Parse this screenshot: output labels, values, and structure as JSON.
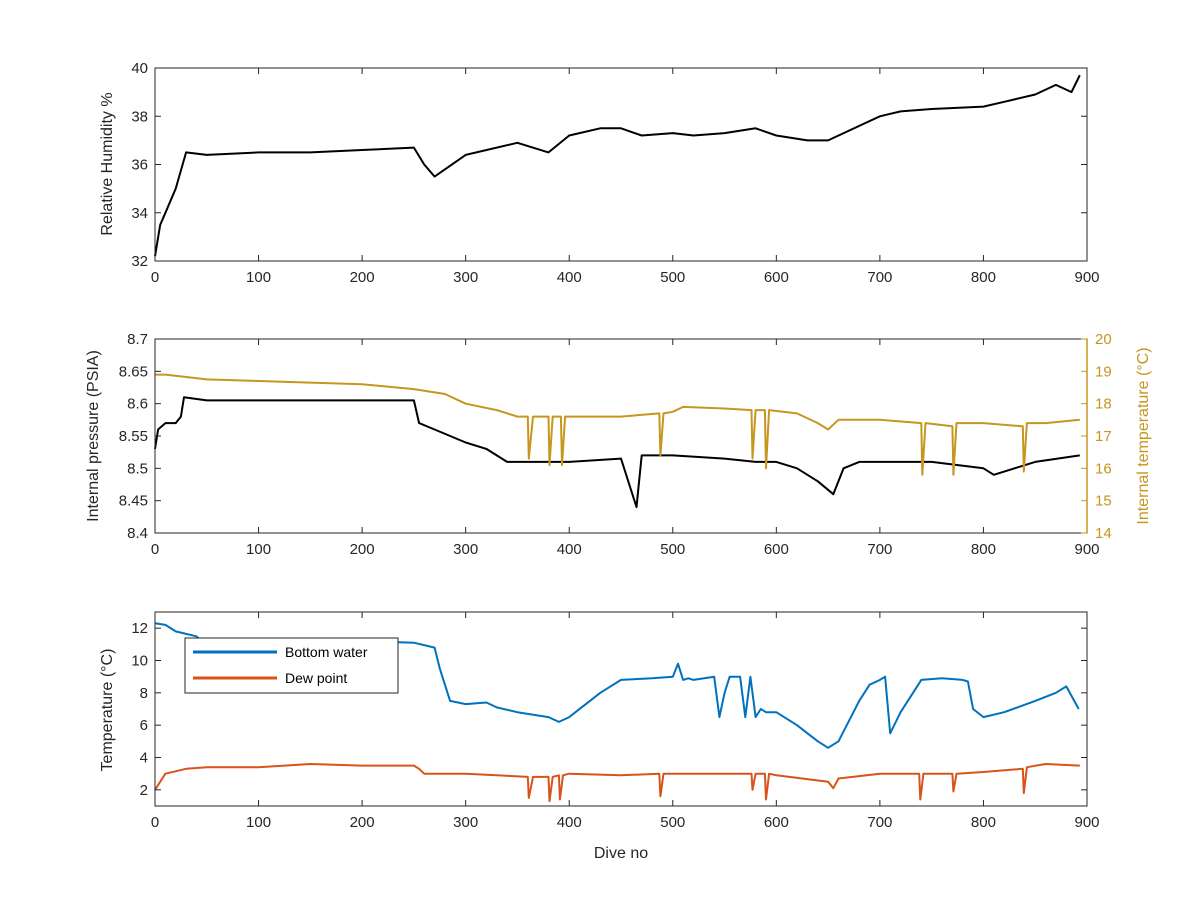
{
  "chart_data": [
    {
      "type": "line",
      "xlim": [
        0,
        900
      ],
      "ylim": [
        32,
        40
      ],
      "xticks": [
        "0",
        "100",
        "200",
        "300",
        "400",
        "500",
        "600",
        "700",
        "800",
        "900"
      ],
      "yticks": [
        "32",
        "34",
        "36",
        "38",
        "40"
      ],
      "ylabel": "Relative Humidity %",
      "grid": false,
      "series": [
        {
          "color": "#000000",
          "x": [
            0,
            5,
            10,
            20,
            30,
            50,
            100,
            150,
            200,
            250,
            260,
            270,
            280,
            300,
            350,
            380,
            400,
            430,
            450,
            470,
            500,
            520,
            550,
            580,
            600,
            630,
            650,
            680,
            700,
            720,
            750,
            800,
            820,
            850,
            870,
            885,
            893
          ],
          "y": [
            32.2,
            33.5,
            34.0,
            35.0,
            36.5,
            36.4,
            36.5,
            36.5,
            36.6,
            36.7,
            36.0,
            35.5,
            35.8,
            36.4,
            36.9,
            36.5,
            37.2,
            37.5,
            37.5,
            37.2,
            37.3,
            37.2,
            37.3,
            37.5,
            37.2,
            37.0,
            37.0,
            37.6,
            38.0,
            38.2,
            38.3,
            38.4,
            38.6,
            38.9,
            39.3,
            39.0,
            39.7
          ]
        }
      ]
    },
    {
      "type": "line",
      "xlim": [
        0,
        900
      ],
      "ylim": [
        8.4,
        8.7
      ],
      "y2lim": [
        14,
        20
      ],
      "xticks": [
        "0",
        "100",
        "200",
        "300",
        "400",
        "500",
        "600",
        "700",
        "800",
        "900"
      ],
      "yticks": [
        "8.4",
        "8.45",
        "8.5",
        "8.55",
        "8.6",
        "8.65",
        "8.7"
      ],
      "y2ticks": [
        "14",
        "15",
        "16",
        "17",
        "18",
        "19",
        "20"
      ],
      "ylabel": "Internal pressure (PSIA)",
      "y2label": "Internal temperature (°C)",
      "grid": false,
      "series": [
        {
          "axis": "left",
          "color": "#000000",
          "x": [
            0,
            3,
            10,
            20,
            25,
            28,
            50,
            100,
            150,
            200,
            250,
            255,
            270,
            300,
            320,
            340,
            360,
            400,
            450,
            465,
            470,
            500,
            550,
            580,
            600,
            620,
            640,
            655,
            665,
            680,
            700,
            750,
            800,
            810,
            850,
            893
          ],
          "y": [
            8.53,
            8.56,
            8.57,
            8.57,
            8.58,
            8.61,
            8.605,
            8.605,
            8.605,
            8.605,
            8.605,
            8.57,
            8.56,
            8.54,
            8.53,
            8.51,
            8.51,
            8.51,
            8.515,
            8.44,
            8.52,
            8.52,
            8.515,
            8.51,
            8.51,
            8.5,
            8.48,
            8.46,
            8.5,
            8.51,
            8.51,
            8.51,
            8.5,
            8.49,
            8.51,
            8.52
          ]
        },
        {
          "axis": "right",
          "color": "#C6961E",
          "x": [
            0,
            10,
            50,
            100,
            200,
            250,
            280,
            300,
            330,
            350,
            360,
            361,
            365,
            380,
            381,
            384,
            392,
            393,
            396,
            400,
            450,
            487,
            488,
            491,
            500,
            510,
            550,
            576,
            577,
            580,
            589,
            590,
            593,
            620,
            640,
            650,
            660,
            680,
            700,
            740,
            741,
            744,
            770,
            771,
            774,
            800,
            838,
            839,
            842,
            860,
            893
          ],
          "y": [
            18.9,
            18.9,
            18.75,
            18.7,
            18.6,
            18.45,
            18.3,
            18.0,
            17.8,
            17.6,
            17.6,
            16.3,
            17.6,
            17.6,
            16.1,
            17.6,
            17.6,
            16.1,
            17.6,
            17.6,
            17.6,
            17.7,
            16.4,
            17.7,
            17.75,
            17.9,
            17.85,
            17.8,
            16.3,
            17.8,
            17.8,
            16.0,
            17.8,
            17.7,
            17.4,
            17.2,
            17.5,
            17.5,
            17.5,
            17.4,
            15.8,
            17.4,
            17.3,
            15.8,
            17.4,
            17.4,
            17.3,
            15.9,
            17.4,
            17.4,
            17.5
          ]
        }
      ]
    },
    {
      "type": "line",
      "xlim": [
        0,
        900
      ],
      "ylim": [
        1,
        13
      ],
      "xticks": [
        "0",
        "100",
        "200",
        "300",
        "400",
        "500",
        "600",
        "700",
        "800",
        "900"
      ],
      "yticks": [
        "2",
        "4",
        "6",
        "8",
        "10",
        "12"
      ],
      "xlabel": "Dive no",
      "ylabel": "Temperature (°C)",
      "legend": "top-left",
      "grid": false,
      "series": [
        {
          "name": "Bottom water",
          "color": "#0072BD",
          "x": [
            0,
            10,
            20,
            40,
            45,
            50,
            100,
            140,
            150,
            200,
            250,
            270,
            275,
            285,
            300,
            320,
            330,
            350,
            380,
            390,
            400,
            430,
            450,
            480,
            500,
            505,
            510,
            515,
            520,
            540,
            545,
            550,
            555,
            560,
            565,
            570,
            575,
            580,
            585,
            590,
            600,
            620,
            640,
            650,
            660,
            680,
            690,
            700,
            705,
            710,
            720,
            740,
            760,
            780,
            785,
            790,
            800,
            820,
            850,
            870,
            880,
            892
          ],
          "y": [
            12.3,
            12.2,
            11.8,
            11.5,
            11.2,
            11.2,
            11.2,
            11.2,
            11.3,
            11.2,
            11.1,
            10.8,
            9.5,
            7.5,
            7.3,
            7.4,
            7.1,
            6.8,
            6.5,
            6.2,
            6.5,
            8.0,
            8.8,
            8.9,
            9.0,
            9.8,
            8.8,
            8.9,
            8.8,
            9.0,
            6.5,
            8.0,
            9.0,
            9.0,
            9.0,
            6.5,
            9.0,
            6.5,
            7.0,
            6.8,
            6.8,
            6.0,
            5.0,
            4.6,
            5.0,
            7.5,
            8.5,
            8.8,
            9.0,
            5.5,
            6.8,
            8.8,
            8.9,
            8.8,
            8.7,
            7.0,
            6.5,
            6.8,
            7.5,
            8.0,
            8.4,
            7.0
          ]
        },
        {
          "name": "Dew point",
          "color": "#D95319",
          "x": [
            0,
            10,
            30,
            50,
            100,
            150,
            200,
            250,
            255,
            260,
            300,
            360,
            361,
            365,
            380,
            381,
            384,
            390,
            391,
            394,
            400,
            450,
            487,
            488,
            491,
            500,
            550,
            576,
            577,
            580,
            589,
            590,
            593,
            600,
            650,
            655,
            660,
            700,
            738,
            739,
            742,
            770,
            771,
            774,
            800,
            838,
            839,
            842,
            860,
            893
          ],
          "y": [
            2.0,
            3.0,
            3.3,
            3.4,
            3.4,
            3.6,
            3.5,
            3.5,
            3.3,
            3.0,
            3.0,
            2.8,
            1.5,
            2.8,
            2.8,
            1.3,
            2.8,
            2.9,
            1.4,
            2.9,
            3.0,
            2.9,
            3.0,
            1.6,
            3.0,
            3.0,
            3.0,
            3.0,
            2.0,
            3.0,
            3.0,
            1.4,
            3.0,
            2.9,
            2.5,
            2.1,
            2.7,
            3.0,
            3.0,
            1.4,
            3.0,
            3.0,
            1.9,
            3.0,
            3.1,
            3.3,
            1.8,
            3.4,
            3.6,
            3.5
          ]
        }
      ]
    }
  ]
}
